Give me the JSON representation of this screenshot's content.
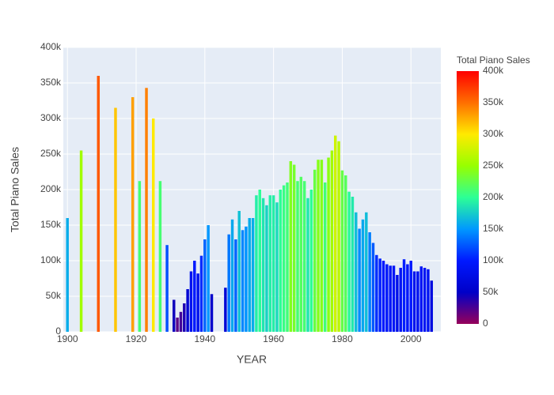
{
  "chart_data": {
    "type": "bar",
    "x_label": "YEAR",
    "y_label": "Total Piano Sales",
    "colorbar_title": "Total Piano Sales",
    "x": [
      1900,
      1904,
      1909,
      1914,
      1919,
      1921,
      1923,
      1925,
      1927,
      1929,
      1931,
      1932,
      1933,
      1934,
      1935,
      1936,
      1937,
      1938,
      1939,
      1940,
      1941,
      1942,
      1946,
      1947,
      1948,
      1949,
      1950,
      1951,
      1952,
      1953,
      1954,
      1955,
      1956,
      1957,
      1958,
      1959,
      1960,
      1961,
      1962,
      1963,
      1964,
      1965,
      1966,
      1967,
      1968,
      1969,
      1970,
      1971,
      1972,
      1973,
      1974,
      1975,
      1976,
      1977,
      1978,
      1979,
      1980,
      1981,
      1982,
      1983,
      1984,
      1985,
      1986,
      1987,
      1988,
      1989,
      1990,
      1991,
      1992,
      1993,
      1994,
      1995,
      1996,
      1997,
      1998,
      1999,
      2000,
      2001,
      2002,
      2003,
      2004,
      2005,
      2006
    ],
    "values": [
      160000,
      255000,
      360000,
      315000,
      330000,
      212000,
      343000,
      300000,
      212000,
      122000,
      45000,
      20000,
      28000,
      40000,
      60000,
      85000,
      100000,
      82000,
      107000,
      130000,
      150000,
      53000,
      62000,
      137000,
      158000,
      130000,
      170000,
      143000,
      148000,
      160000,
      160000,
      192000,
      200000,
      188000,
      178000,
      192000,
      192000,
      182000,
      200000,
      206000,
      210000,
      240000,
      235000,
      212000,
      218000,
      212000,
      188000,
      200000,
      228000,
      242000,
      242000,
      210000,
      245000,
      255000,
      276000,
      268000,
      227000,
      220000,
      197000,
      190000,
      168000,
      145000,
      158000,
      168000,
      140000,
      125000,
      108000,
      103000,
      100000,
      95000,
      93000,
      93000,
      80000,
      90000,
      102000,
      95000,
      100000,
      85000,
      85000,
      92000,
      90000,
      88000,
      72000
    ],
    "xlim": [
      1898.8,
      2008.7
    ],
    "xticks": [
      1900,
      1920,
      1940,
      1960,
      1980,
      2000
    ],
    "ylim": [
      0,
      400000
    ],
    "yticks": [
      0,
      {
        "value": 50000,
        "label": "50k"
      },
      {
        "value": 100000,
        "label": "100k"
      },
      {
        "value": 150000,
        "label": "150k"
      },
      {
        "value": 200000,
        "label": "200k"
      },
      {
        "value": 250000,
        "label": "250k"
      },
      {
        "value": 300000,
        "label": "300k"
      },
      {
        "value": 350000,
        "label": "350k"
      },
      {
        "value": 400000,
        "label": "400k"
      }
    ],
    "clim": [
      0,
      400000
    ],
    "cticks": [
      0,
      {
        "value": 50000,
        "label": "50k"
      },
      {
        "value": 100000,
        "label": "100k"
      },
      {
        "value": 150000,
        "label": "150k"
      },
      {
        "value": 200000,
        "label": "200k"
      },
      {
        "value": 250000,
        "label": "250k"
      },
      {
        "value": 300000,
        "label": "300k"
      },
      {
        "value": 350000,
        "label": "350k"
      },
      {
        "value": 400000,
        "label": "400k"
      }
    ],
    "colorscale": [
      [
        0,
        "#96005a"
      ],
      [
        0.125,
        "#0000c8"
      ],
      [
        0.25,
        "#0019ff"
      ],
      [
        0.375,
        "#0098ff"
      ],
      [
        0.5,
        "#2cff96"
      ],
      [
        0.625,
        "#97ff00"
      ],
      [
        0.75,
        "#ffea00"
      ],
      [
        0.875,
        "#ff6f00"
      ],
      [
        1,
        "#ff0000"
      ]
    ],
    "grid": true
  }
}
